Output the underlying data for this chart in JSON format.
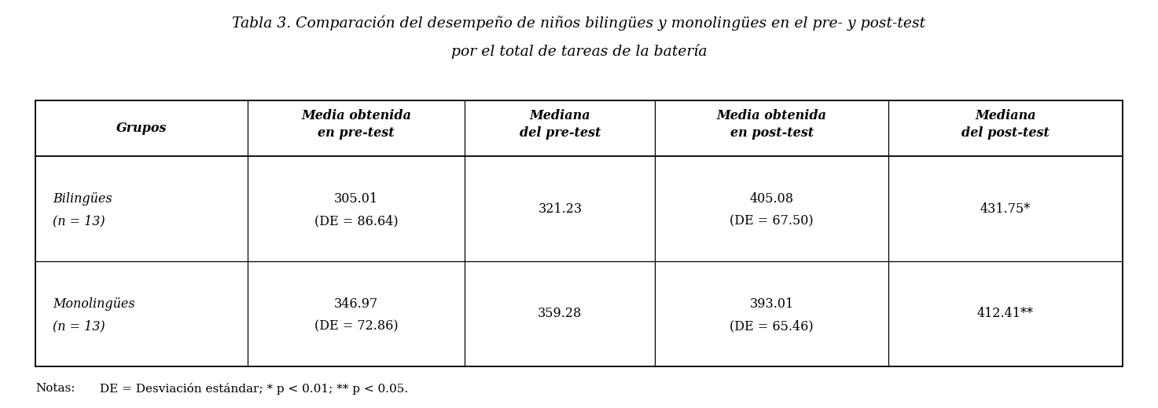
{
  "title_line1": "Tabla 3. Comparación del desempeño de niños bilingües y monolingües en el pre- y post-test",
  "title_line2": "por el total de tareas de la batería",
  "col_headers": [
    [
      "Grupos",
      ""
    ],
    [
      "Media obtenida",
      "en pre-test"
    ],
    [
      "Mediana",
      "del pre-test"
    ],
    [
      "Media obtenida",
      "en post-test"
    ],
    [
      "Mediana",
      "del post-test"
    ]
  ],
  "row1_label": [
    "Bilingües",
    "(n = 13)"
  ],
  "row1_data": [
    "305.01\n(DE = 86.64)",
    "321.23",
    "405.08\n(DE = 67.50)",
    "431.75*"
  ],
  "row2_label": [
    "Monolingües",
    "(n = 13)"
  ],
  "row2_data": [
    "346.97\n(DE = 72.86)",
    "359.28",
    "393.01\n(DE = 65.46)",
    "412.41**"
  ],
  "footnote": "Notas: DE = Desviación estándar; * p < 0.01; ** p < 0.05.",
  "bg_color": "#ffffff",
  "text_color": "#000000",
  "line_color": "#000000"
}
